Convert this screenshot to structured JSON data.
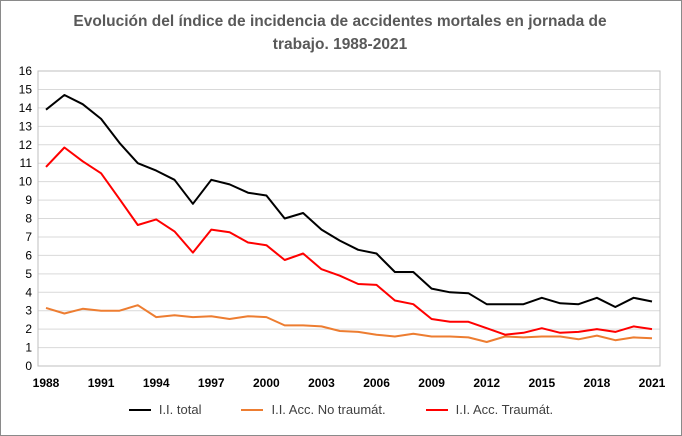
{
  "chart_data": {
    "type": "line",
    "title_line1": "Evolución del índice de incidencia de accidentes mortales en jornada de",
    "title_line2": "trabajo. 1988-2021",
    "xlabel": "",
    "ylabel": "",
    "ylim": [
      0,
      16
    ],
    "yticks": [
      "0",
      "1",
      "2",
      "3",
      "4",
      "5",
      "6",
      "7",
      "8",
      "9",
      "10",
      "11",
      "12",
      "13",
      "14",
      "15",
      "16"
    ],
    "xticks": [
      "1988",
      "1991",
      "1994",
      "1997",
      "2000",
      "2003",
      "2006",
      "2009",
      "2012",
      "2015",
      "2018",
      "2021"
    ],
    "grid": true,
    "legend_position": "bottom",
    "x": [
      1988,
      1989,
      1990,
      1991,
      1992,
      1993,
      1994,
      1995,
      1996,
      1997,
      1998,
      1999,
      2000,
      2001,
      2002,
      2003,
      2004,
      2005,
      2006,
      2007,
      2008,
      2009,
      2010,
      2011,
      2012,
      2013,
      2014,
      2015,
      2016,
      2017,
      2018,
      2019,
      2020,
      2021
    ],
    "series": [
      {
        "name": "I.I. total",
        "color": "#000000",
        "values": [
          13.9,
          14.7,
          14.2,
          13.4,
          12.1,
          11.0,
          10.6,
          10.1,
          8.8,
          10.1,
          9.85,
          9.4,
          9.25,
          8.0,
          8.3,
          7.4,
          6.8,
          6.3,
          6.1,
          5.1,
          5.1,
          4.2,
          4.0,
          3.95,
          3.35,
          3.35,
          3.35,
          3.7,
          3.4,
          3.35,
          3.7,
          3.2,
          3.7,
          3.5
        ]
      },
      {
        "name": "I.I. Acc. No traumát.",
        "color": "#ED7D31",
        "values": [
          3.15,
          2.85,
          3.1,
          3.0,
          3.0,
          3.3,
          2.65,
          2.75,
          2.65,
          2.7,
          2.55,
          2.7,
          2.65,
          2.2,
          2.2,
          2.15,
          1.9,
          1.85,
          1.7,
          1.6,
          1.75,
          1.6,
          1.6,
          1.55,
          1.3,
          1.6,
          1.55,
          1.6,
          1.6,
          1.45,
          1.65,
          1.4,
          1.55,
          1.5
        ]
      },
      {
        "name": "I.I. Acc. Traumát.",
        "color": "#FF0000",
        "values": [
          10.8,
          11.85,
          11.1,
          10.45,
          9.05,
          7.65,
          7.95,
          7.3,
          6.15,
          7.4,
          7.25,
          6.7,
          6.55,
          5.75,
          6.1,
          5.25,
          4.9,
          4.45,
          4.4,
          3.55,
          3.35,
          2.55,
          2.4,
          2.4,
          2.05,
          1.7,
          1.8,
          2.05,
          1.8,
          1.85,
          2.0,
          1.85,
          2.15,
          2.0
        ]
      }
    ]
  }
}
